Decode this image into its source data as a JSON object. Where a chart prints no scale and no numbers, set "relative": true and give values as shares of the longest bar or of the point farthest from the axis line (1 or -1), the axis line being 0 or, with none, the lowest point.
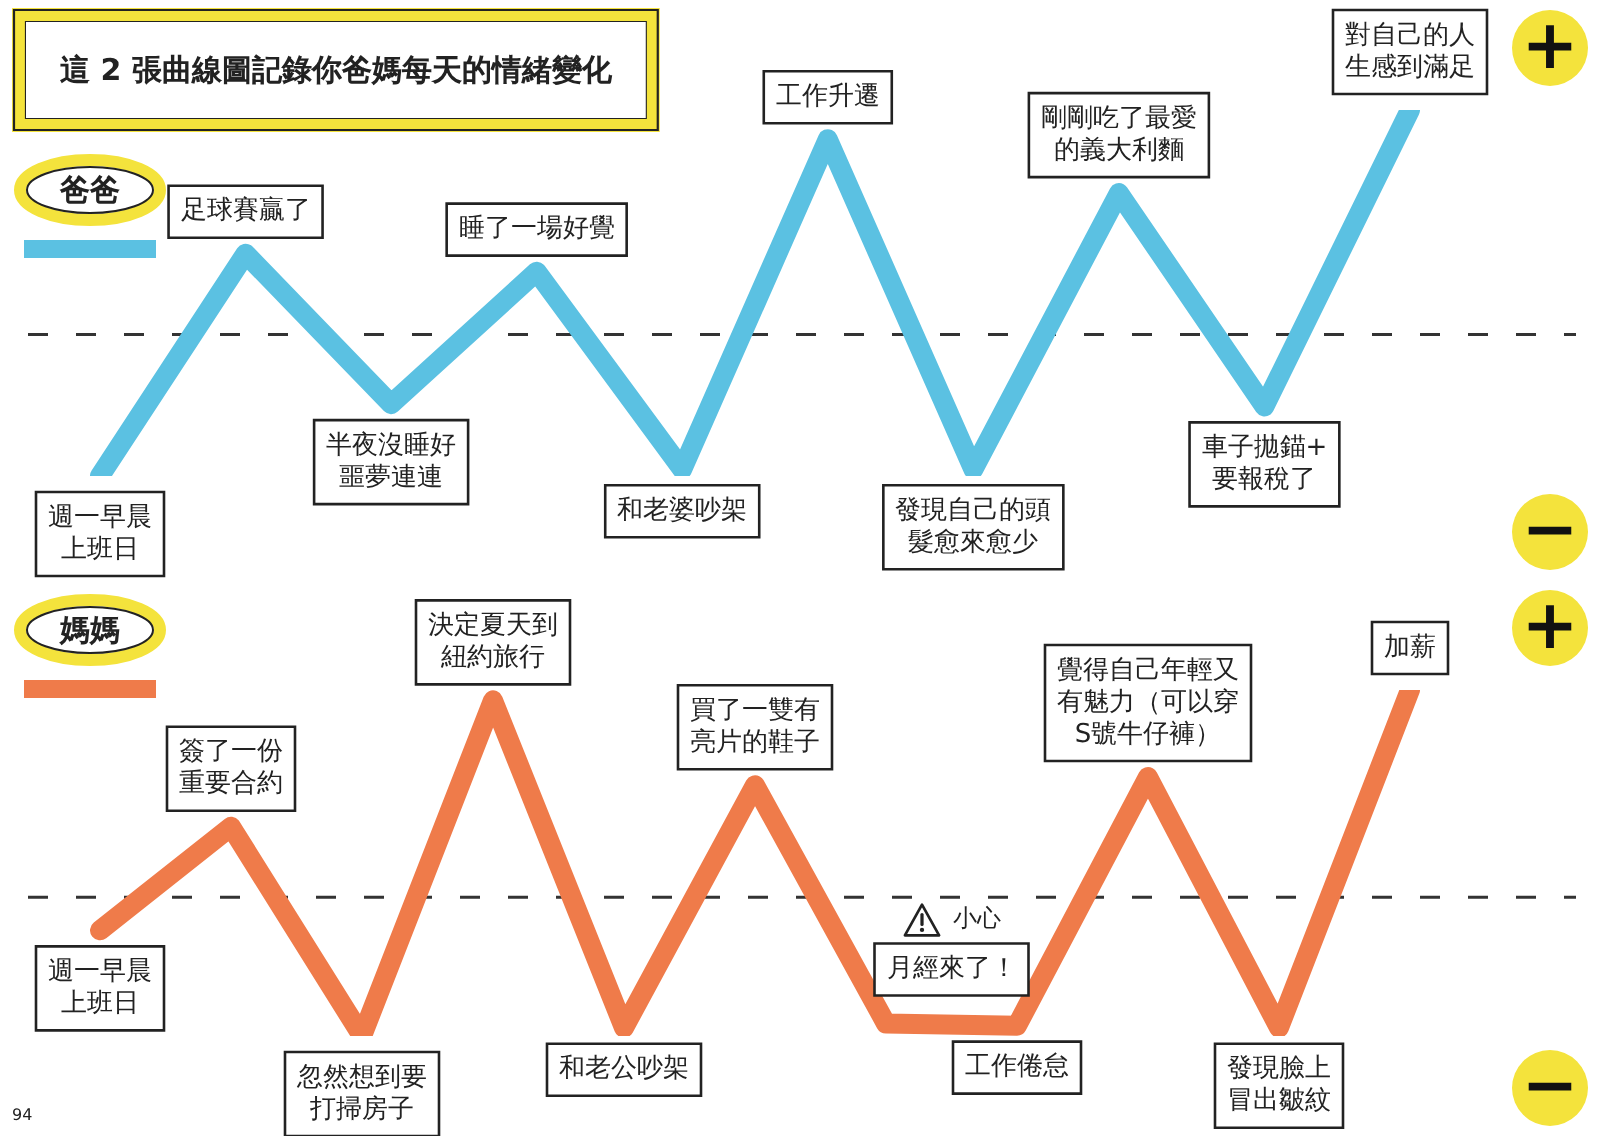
{
  "chart_data": [
    {
      "type": "line",
      "title": "這 2 張曲線圖記錄你爸媽每天的情緒變化",
      "relative": true,
      "tick_labels": false,
      "legend": "top left",
      "categories": [
        null,
        null,
        null,
        null,
        null,
        null,
        null,
        null,
        null,
        null
      ],
      "series": [
        {
          "name": "爸爸",
          "color": "#5bc1e2",
          "values": [
            -0.63,
            0.36,
            -0.31,
            0.28,
            -0.6,
            0.87,
            -0.6,
            0.63,
            -0.32,
            1
          ]
        }
      ],
      "ref_lines": [
        {
          "axis": "y",
          "value": 0,
          "line_style": "dashed",
          "color": "#333333"
        }
      ],
      "annotations": [
        "+",
        "−",
        {
          "text": "週一早晨上班日",
          "y": -0.63
        },
        {
          "text": "足球賽贏了",
          "y": 0.36
        },
        {
          "text": "半夜沒睡好噩夢連連",
          "y": -0.31
        },
        {
          "text": "睡了一場好覺",
          "y": 0.28
        },
        {
          "text": "和老婆吵架",
          "y": -0.6
        },
        {
          "text": "工作升遷",
          "y": 0.87
        },
        {
          "text": "發現自己的頭髮愈來愈少",
          "y": -0.6
        },
        {
          "text": "剛剛吃了最愛的義大利麵",
          "y": 0.63
        },
        {
          "text": "車子拋錨+要報稅了",
          "y": -0.32
        },
        {
          "text": "對自己的人生感到滿足",
          "y": 1
        }
      ]
    },
    {
      "type": "line",
      "relative": true,
      "tick_labels": false,
      "legend": "top left",
      "categories": [
        null,
        null,
        null,
        null,
        null,
        null,
        null,
        null,
        null,
        null,
        null
      ],
      "series": [
        {
          "name": "媽媽",
          "color": "#ef7b4a",
          "values": [
            -0.16,
            0.34,
            -0.67,
            0.95,
            -0.63,
            0.54,
            -0.61,
            -0.62,
            0.58,
            -0.63,
            1
          ]
        }
      ],
      "ref_lines": [
        {
          "axis": "y",
          "value": 0,
          "line_style": "dashed",
          "color": "#333333"
        }
      ],
      "annotations": [
        "+",
        "−",
        "小心",
        "94",
        {
          "text": "週一早晨上班日",
          "y": -0.16
        },
        {
          "text": "簽了一份重要合約",
          "y": 0.34
        },
        {
          "text": "忽然想到要打掃房子",
          "y": -0.67
        },
        {
          "text": "決定夏天到紐約旅行",
          "y": 0.95
        },
        {
          "text": "和老公吵架",
          "y": -0.63
        },
        {
          "text": "買了一雙有亮片的鞋子",
          "y": 0.54
        },
        {
          "text": "月經來了！",
          "y": -0.61
        },
        {
          "text": "工作倦怠",
          "y": -0.62
        },
        {
          "text": "覺得自己年輕又有魅力（可以穿S號牛仔褲）",
          "y": 0.58
        },
        {
          "text": "發現臉上冒出皺紋",
          "y": -0.63
        },
        {
          "text": "加薪",
          "y": 1
        }
      ]
    }
  ]
}
